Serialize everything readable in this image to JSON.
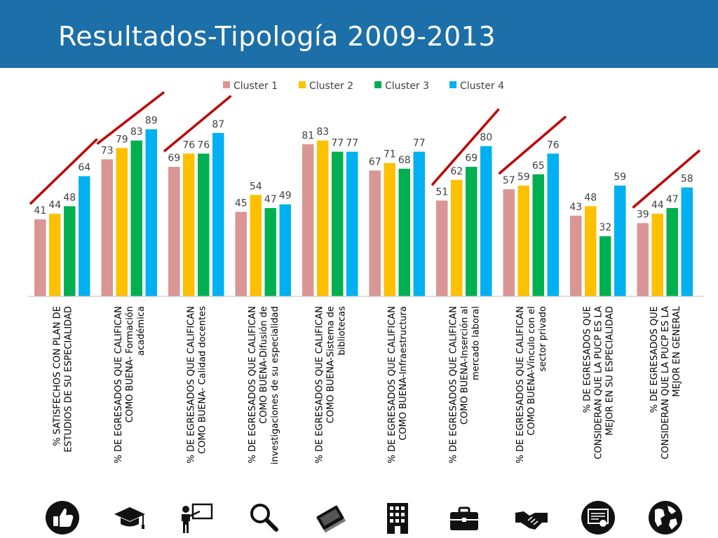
{
  "slide": {
    "title": "Resultados-Tipología 2009-2013"
  },
  "colors": {
    "header": "#1c6fa8",
    "cluster1": "#d99694",
    "cluster2": "#ffc000",
    "cluster3": "#00b050",
    "cluster4": "#00b0f0",
    "trend_line": "#c00000",
    "icon": "#111111"
  },
  "chart_data": {
    "type": "bar",
    "title": "",
    "legend_position": "top",
    "grid": false,
    "ylim": [
      0,
      100
    ],
    "categories": [
      [
        "% SATISFECHOS CON PLAN DE",
        "ESTUDIOS DE SU ESPECIALIDAD"
      ],
      [
        "% DE EGRESADOS QUE CALIFICAN",
        "COMO BUENA- Formación",
        "académica"
      ],
      [
        "% DE EGRESADOS QUE CALIFICAN",
        "COMO BUENA- Calidad docentes"
      ],
      [
        "% DE EGRESADOS QUE CALIFICAN",
        "COMO BUENA-Difusión de",
        "investigaciones de su especialidad"
      ],
      [
        "% DE EGRESADOS QUE CALIFICAN",
        "COMO BUENA-Sistema de",
        "bibliotecas"
      ],
      [
        "% DE EGRESADOS QUE CALIFICAN",
        "COMO BUENA-Infraestructura"
      ],
      [
        "% DE EGRESADOS QUE CALIFICAN",
        "COMO BUENA-Inserción al",
        "mercado laboral"
      ],
      [
        "% DE EGRESADOS QUE CALIFICAN",
        "COMO BUENA-Vínculo con el",
        "sector privado"
      ],
      [
        "% DE EGRESADOS QUE",
        "CONSIDERAN QUE LA PUCP ES LA",
        "MEJOR EN SU ESPECIALIDAD"
      ],
      [
        "% DE EGRESADOS QUE",
        "CONSIDERAN QUE LA PUCP ES LA",
        "MEJOR EN GENERAL"
      ]
    ],
    "series": [
      {
        "name": "Cluster 1",
        "values": [
          41,
          73,
          69,
          45,
          81,
          67,
          51,
          57,
          43,
          39
        ]
      },
      {
        "name": "Cluster 2",
        "values": [
          44,
          79,
          76,
          54,
          83,
          71,
          62,
          59,
          48,
          44
        ]
      },
      {
        "name": "Cluster 3",
        "values": [
          48,
          83,
          76,
          47,
          77,
          68,
          69,
          65,
          32,
          47
        ]
      },
      {
        "name": "Cluster 4",
        "values": [
          64,
          89,
          87,
          49,
          77,
          77,
          80,
          76,
          59,
          58
        ]
      }
    ],
    "trend_lines_on_groups": [
      0,
      1,
      2,
      6,
      7,
      9
    ]
  },
  "icons": [
    "thumbs-up-icon",
    "graduation-cap-icon",
    "teacher-board-icon",
    "magnifier-icon",
    "book-icon",
    "building-icon",
    "briefcase-icon",
    "handshake-icon",
    "certificate-icon",
    "globe-icon"
  ]
}
